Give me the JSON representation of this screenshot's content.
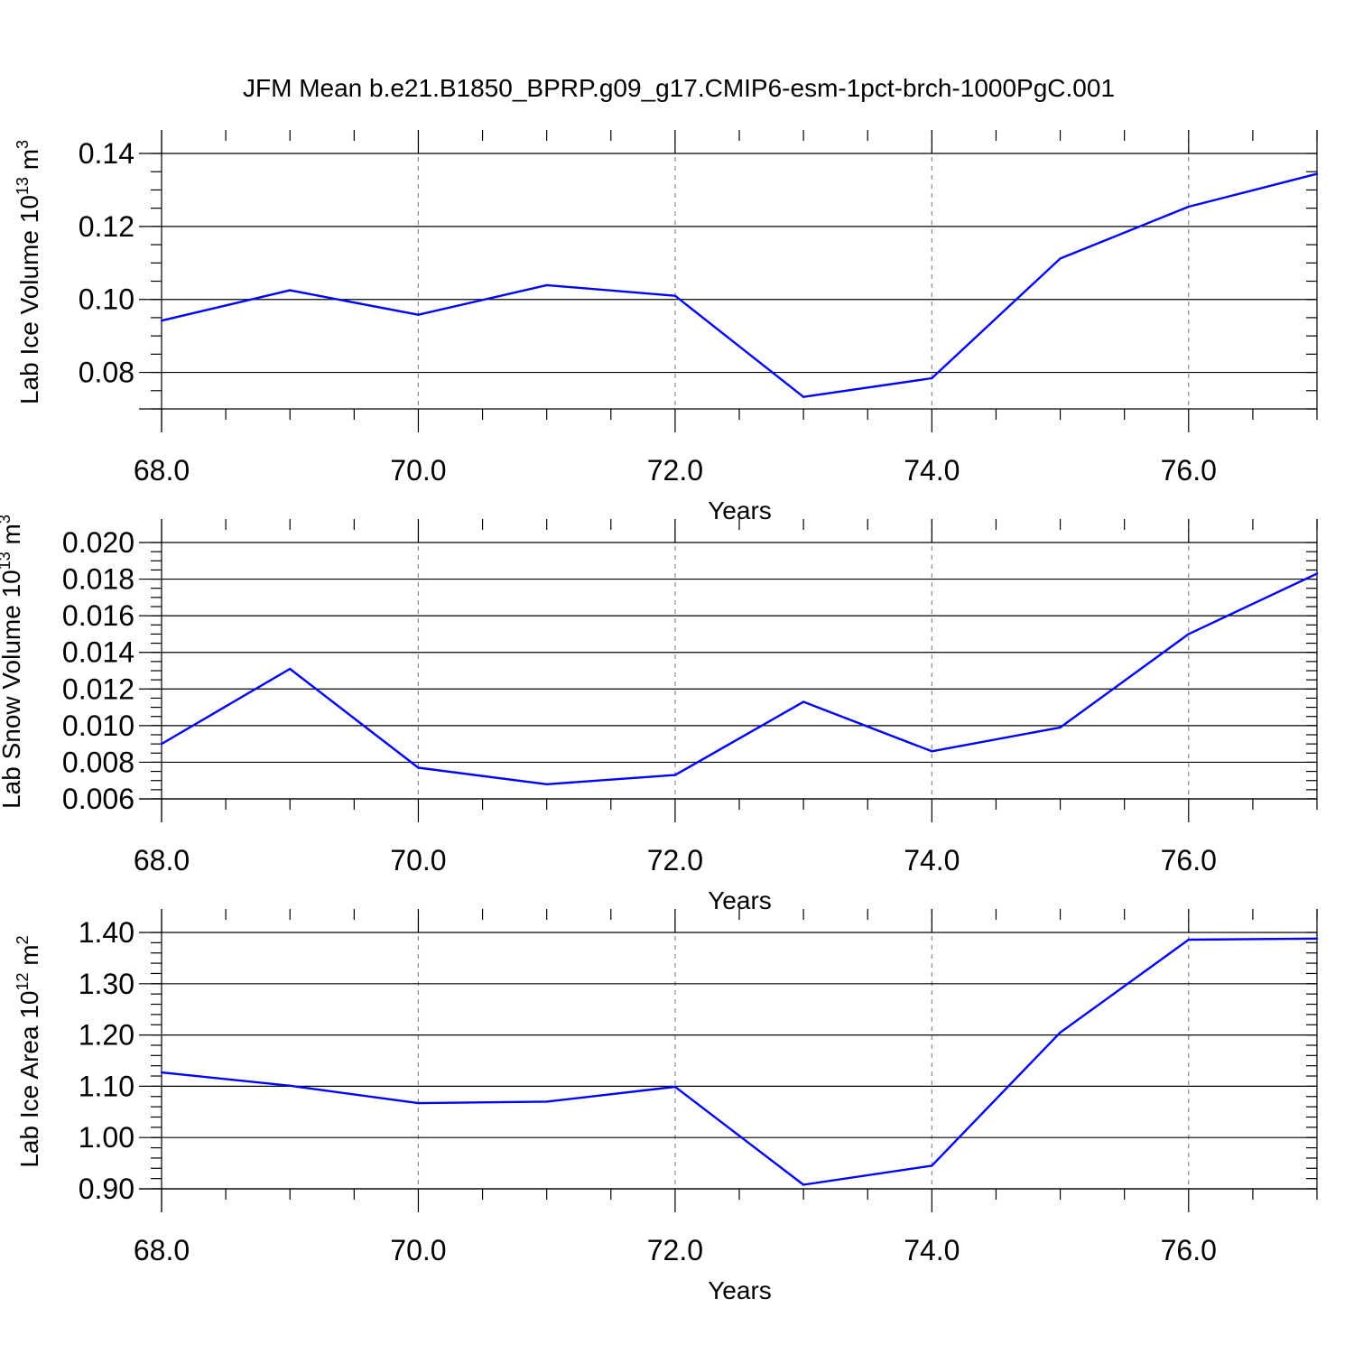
{
  "title": "JFM Mean b.e21.B1850_BPRP.g09_g17.CMIP6-esm-1pct-brch-1000PgC.001",
  "line_color": "#0000ff",
  "chart_data": [
    {
      "type": "line",
      "ylabel": "Lab Ice Volume 10",
      "ylabel_exp": "13",
      "ylabel_unit": " m",
      "ylabel_unit_exp": "3",
      "xlabel": "Years",
      "x": [
        68,
        69,
        70,
        71,
        72,
        73,
        74,
        75,
        76,
        77
      ],
      "values": [
        0.0942,
        0.1025,
        0.0958,
        0.1039,
        0.101,
        0.0733,
        0.0784,
        0.1112,
        0.1254,
        0.1344
      ],
      "xlim": [
        68,
        77
      ],
      "ylim": [
        0.07,
        0.14
      ],
      "xticks": [
        "68.0",
        "70.0",
        "72.0",
        "74.0",
        "76.0"
      ],
      "yticks": [
        "0.08",
        "0.10",
        "0.12",
        "0.14"
      ],
      "grid": "vertical dashed at major x ticks"
    },
    {
      "type": "line",
      "ylabel": "Lab Snow Volume 10",
      "ylabel_exp": "13",
      "ylabel_unit": " m",
      "ylabel_unit_exp": "3",
      "xlabel": "Years",
      "x": [
        68,
        69,
        70,
        71,
        72,
        73,
        74,
        75,
        76,
        77
      ],
      "values": [
        0.009,
        0.0131,
        0.0077,
        0.0068,
        0.0073,
        0.0113,
        0.0086,
        0.0099,
        0.015,
        0.0183
      ],
      "xlim": [
        68,
        77
      ],
      "ylim": [
        0.006,
        0.02
      ],
      "xticks": [
        "68.0",
        "70.0",
        "72.0",
        "74.0",
        "76.0"
      ],
      "yticks": [
        "0.006",
        "0.008",
        "0.010",
        "0.012",
        "0.014",
        "0.016",
        "0.018",
        "0.020"
      ],
      "grid": "vertical dashed at major x ticks"
    },
    {
      "type": "line",
      "ylabel": "Lab Ice Area 10",
      "ylabel_exp": "12",
      "ylabel_unit": " m",
      "ylabel_unit_exp": "2",
      "xlabel": "Years",
      "x": [
        68,
        69,
        70,
        71,
        72,
        73,
        74,
        75,
        76,
        77
      ],
      "values": [
        1.127,
        1.101,
        1.067,
        1.07,
        1.099,
        0.908,
        0.945,
        1.205,
        1.386,
        1.388
      ],
      "xlim": [
        68,
        77
      ],
      "ylim": [
        0.9,
        1.4
      ],
      "xticks": [
        "68.0",
        "70.0",
        "72.0",
        "74.0",
        "76.0"
      ],
      "yticks": [
        "0.90",
        "1.00",
        "1.10",
        "1.20",
        "1.30",
        "1.40"
      ],
      "grid": "vertical dashed at major x ticks"
    }
  ]
}
